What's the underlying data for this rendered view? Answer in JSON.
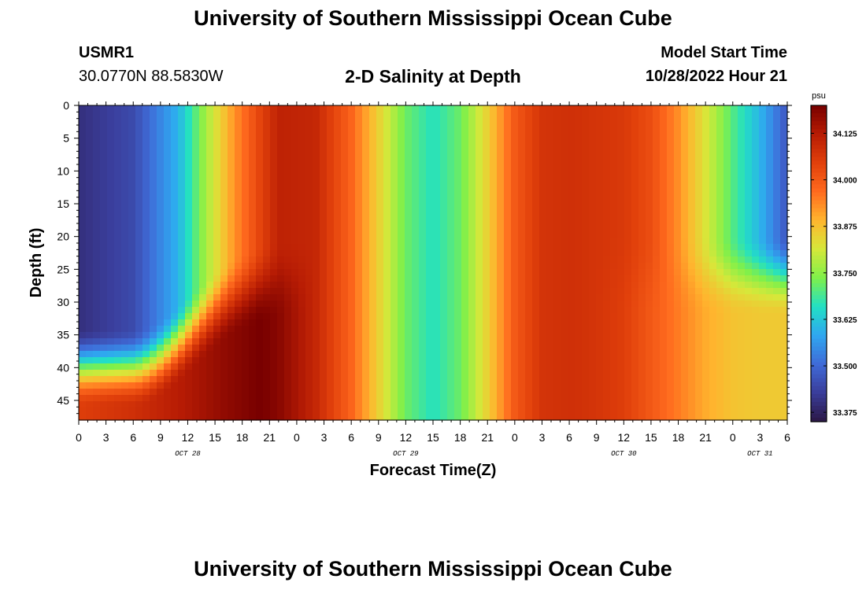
{
  "page": {
    "main_title": "University of Southern Mississippi Ocean Cube",
    "bottom_title": "University of Southern Mississippi Ocean Cube",
    "station_id": "USMR1",
    "station_coords": "30.0770N  88.5830W",
    "start_label": "Model Start Time",
    "start_value": "10/28/2022 Hour 21"
  },
  "colors": {
    "scale": [
      "#2b1745",
      "#3a3d9a",
      "#3f6bd8",
      "#2fa7f0",
      "#22e0c4",
      "#7ff04a",
      "#d6e83a",
      "#ffb52e",
      "#ff6a1e",
      "#e1400b",
      "#b71c04",
      "#780000"
    ]
  },
  "chart_data": {
    "type": "heatmap",
    "title": "2-D Salinity at Depth",
    "xlabel": "Forecast Time(Z)",
    "ylabel": "Depth (ft)",
    "x_tick_labels": [
      "0",
      "3",
      "6",
      "9",
      "12",
      "15",
      "18",
      "21",
      "0",
      "3",
      "6",
      "9",
      "12",
      "15",
      "18",
      "21",
      "0",
      "3",
      "6",
      "9",
      "12",
      "15",
      "18",
      "21",
      "0",
      "3",
      "6"
    ],
    "date_labels": [
      {
        "label": "OCT 28",
        "hour": 12
      },
      {
        "label": "OCT 29",
        "hour": 36
      },
      {
        "label": "OCT 30",
        "hour": 60
      },
      {
        "label": "OCT 31",
        "hour": 75
      }
    ],
    "xlim": [
      0,
      78
    ],
    "y_ticks": [
      0,
      5,
      10,
      15,
      20,
      25,
      30,
      35,
      40,
      45
    ],
    "ylim": [
      0,
      48
    ],
    "colorbar": {
      "unit": "psu",
      "ticks": [
        33.375,
        33.5,
        33.625,
        33.75,
        33.875,
        34.0,
        34.125
      ],
      "tick_labels": [
        "33.375",
        "33.500",
        "33.625",
        "33.750",
        "33.875",
        "34.000",
        "34.125"
      ],
      "range": [
        33.35,
        34.2
      ]
    },
    "surface_salinity_profile": {
      "hours": [
        0,
        6,
        11,
        14,
        17,
        20,
        22,
        26,
        30,
        33,
        36,
        39,
        42,
        45,
        48,
        51,
        54,
        57,
        60,
        63,
        66,
        69,
        72,
        75,
        78
      ],
      "values": [
        33.4,
        33.45,
        33.6,
        33.77,
        33.92,
        34.04,
        34.11,
        34.1,
        33.98,
        33.85,
        33.72,
        33.66,
        33.72,
        33.85,
        34.0,
        34.07,
        34.08,
        34.07,
        34.06,
        34.02,
        33.93,
        33.82,
        33.7,
        33.6,
        33.47
      ]
    },
    "bottom_salinity_profile": {
      "hours": [
        0,
        6,
        12,
        16,
        20,
        22,
        26,
        30,
        33,
        36,
        39,
        42,
        45,
        48,
        51,
        54,
        57,
        60,
        63,
        66,
        69,
        72,
        75,
        78
      ],
      "values": [
        34.05,
        34.08,
        34.13,
        34.17,
        34.2,
        34.18,
        34.1,
        33.98,
        33.85,
        33.72,
        33.66,
        33.72,
        33.85,
        34.0,
        34.07,
        34.08,
        34.07,
        34.05,
        34.0,
        33.95,
        33.9,
        33.87,
        33.86,
        33.86
      ]
    }
  }
}
